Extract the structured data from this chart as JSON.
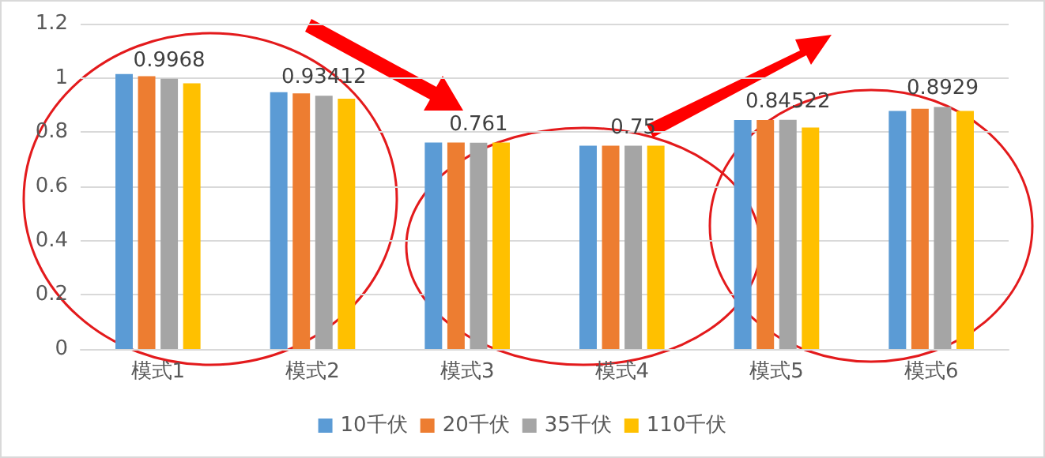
{
  "chart_data": {
    "type": "bar",
    "categories": [
      "模式1",
      "模式2",
      "模式3",
      "模式4",
      "模式5",
      "模式6"
    ],
    "series": [
      {
        "name": "10千伏",
        "color": "#5b9bd5",
        "values": [
          1.014,
          0.947,
          0.762,
          0.75,
          0.845,
          0.878
        ]
      },
      {
        "name": "20千伏",
        "color": "#ed7d31",
        "values": [
          1.006,
          0.943,
          0.762,
          0.75,
          0.845,
          0.886
        ]
      },
      {
        "name": "35千伏",
        "color": "#a5a5a5",
        "values": [
          0.9968,
          0.93412,
          0.761,
          0.75,
          0.84522,
          0.8929
        ],
        "value_labels": [
          "0.9968",
          "0.93412",
          "0.761",
          "0.75",
          "0.84522",
          "0.8929"
        ]
      },
      {
        "name": "110千伏",
        "color": "#ffc000",
        "values": [
          0.98,
          0.923,
          0.762,
          0.75,
          0.817,
          0.878
        ]
      }
    ],
    "ylim": [
      0,
      1.2
    ],
    "yticks": [
      0,
      0.2,
      0.4,
      0.6,
      0.8,
      1,
      1.2
    ],
    "grid": "y",
    "legend": "bottom"
  }
}
